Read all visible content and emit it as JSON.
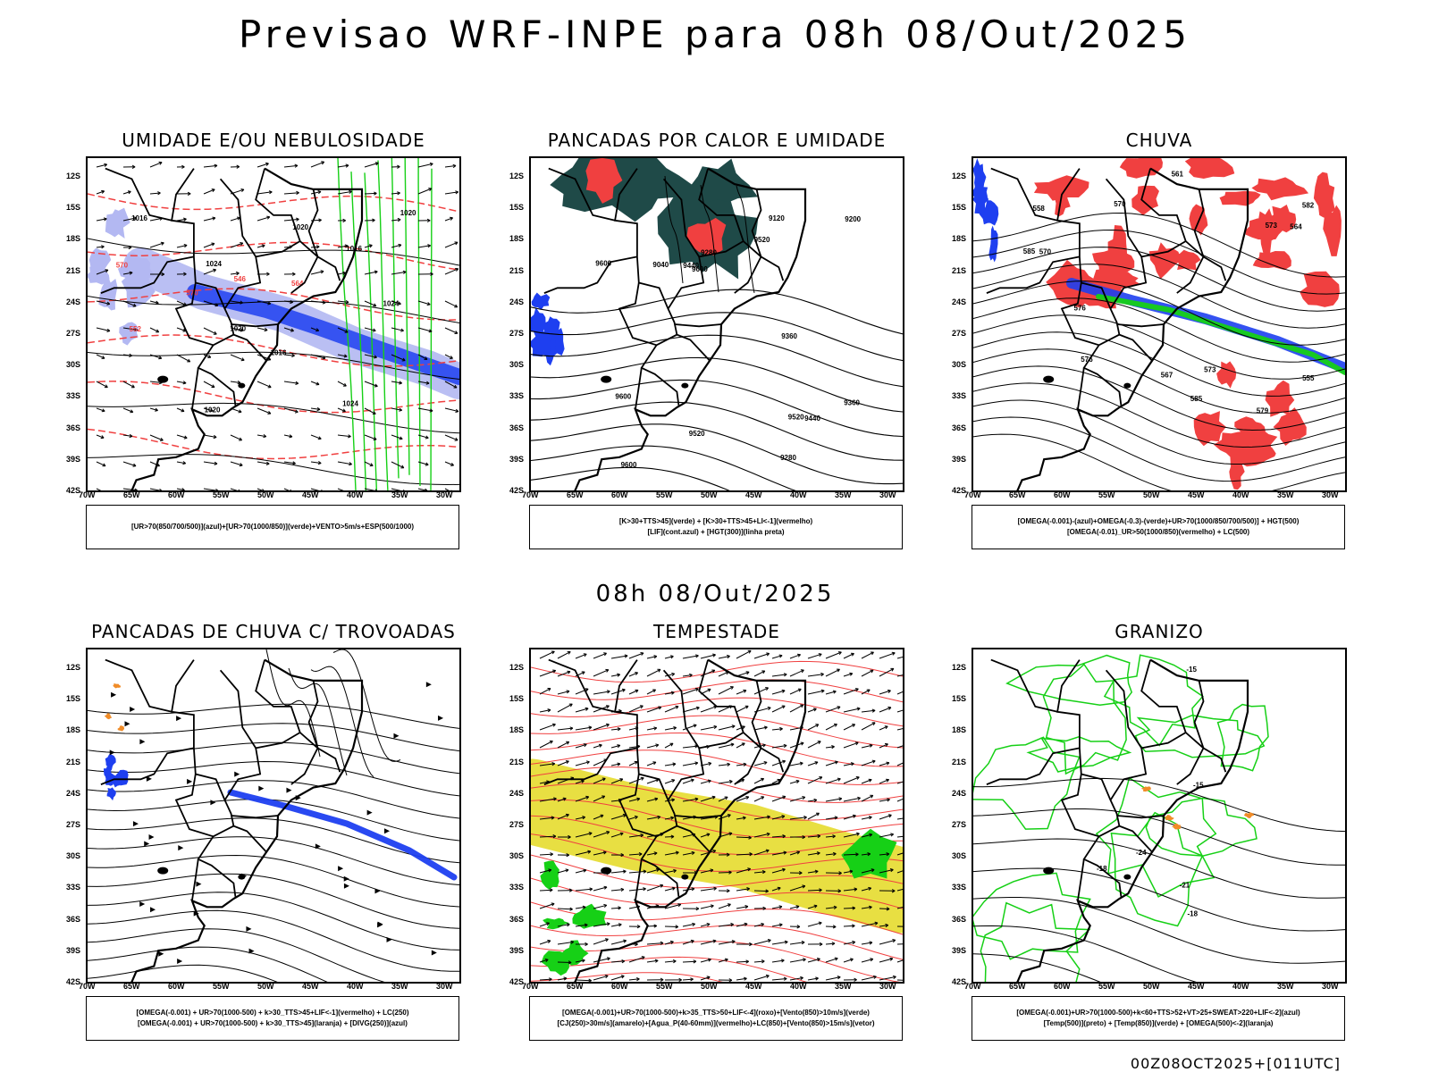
{
  "header": {
    "main_title": "Previsao WRF-INPE  para 08h 08/Out/2025",
    "mid_title": "08h 08/Out/2025",
    "footer": "00Z08OCT2025+[011UTC]"
  },
  "axes": {
    "lat_labels": [
      "12S",
      "15S",
      "18S",
      "21S",
      "24S",
      "27S",
      "30S",
      "33S",
      "36S",
      "39S",
      "42S"
    ],
    "lon_labels": [
      "70W",
      "65W",
      "60W",
      "55W",
      "50W",
      "45W",
      "40W",
      "35W",
      "30W"
    ]
  },
  "colors": {
    "blue": "#1e3ff0",
    "light_blue": "#b3b8f2",
    "green": "#16d016",
    "red": "#f04040",
    "dark_teal": "#1f4a48",
    "yellow": "#e6dc2e",
    "orange": "#f08c28"
  },
  "panels": [
    {
      "title": "UMIDADE E/OU NEBULOSIDADE",
      "legend": [
        "[UR>70(850/700/500)](azul)+[UR>70(1000/850)](verde)+VENTO>5m/s+ESP(500/1000)"
      ],
      "contour_labels": [
        "1016",
        "1016",
        "1016",
        "1020",
        "1020",
        "1020",
        "1024",
        "1024",
        "1024",
        "1020",
        "570",
        "570",
        "564",
        "552",
        "546"
      ]
    },
    {
      "title": "PANCADAS POR CALOR E UMIDADE",
      "legend": [
        "[K>30+TTS>45](verde) + [K>30+TTS>45+LI<-1](vermelho)",
        "[LIF](cont.azul) + [HGT(300)](linha preta)"
      ],
      "contour_labels": [
        "9600",
        "9600",
        "9600",
        "9520",
        "9520",
        "9440",
        "9440",
        "9360",
        "9360",
        "9280",
        "9280",
        "9200",
        "9120",
        "9040",
        "9600",
        "9520"
      ]
    },
    {
      "title": "CHUVA",
      "legend": [
        "[OMEGA(-0.001)-(azul)+OMEGA(-0.3)-(verde)+UR>70(1000/850/700/500)] + HGT(500)",
        "[OMEGA(-0.01)_UR>50(1000/850)(vermelho) + LC(500)"
      ],
      "contour_labels": [
        "585",
        "585",
        "582",
        "579",
        "576",
        "576",
        "573",
        "570",
        "567",
        "564",
        "561",
        "558",
        "555",
        "573",
        "570"
      ]
    },
    {
      "title": "PANCADAS DE CHUVA C/ TROVOADAS",
      "legend": [
        "[OMEGA(-0.001) + UR>70(1000-500) + k>30_TTS>45+LIF<-1](vermelho) + LC(250)",
        "[OMEGA(-0.001) + UR>70(1000-500) + k>30_TTS>45](laranja) + [DIVG(250)](azul)"
      ],
      "contour_labels": []
    },
    {
      "title": "TEMPESTADE",
      "legend": [
        "[OMEGA(-0.001)+UR>70(1000-500)+k>35_TTS>50+LIF<-4](roxo)+[Vento(850)>10m/s](verde)",
        "[CJ(250)>30m/s](amarelo)+[Agua_P(40-60mm)](vermelho)+LC(850)+[Vento(850)>15m/s](vetor)"
      ],
      "contour_labels": []
    },
    {
      "title": "GRANIZO",
      "legend": [
        "[OMEGA(-0.001)+UR>70(1000-500)+k<60+TTS>52+VT>25+SWEAT>220+LIF<-2](azul)",
        "[Temp(500)](preto) + [Temp(850)](verde) + [OMEGA(500)<-2](laranja)"
      ],
      "contour_labels": [
        "-15",
        "-15",
        "-18",
        "-18",
        "-21",
        "-24"
      ]
    }
  ]
}
